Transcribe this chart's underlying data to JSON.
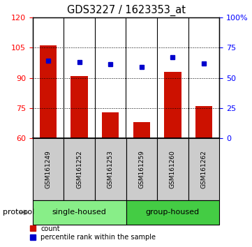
{
  "title": "GDS3227 / 1623353_at",
  "samples": [
    "GSM161249",
    "GSM161252",
    "GSM161253",
    "GSM161259",
    "GSM161260",
    "GSM161262"
  ],
  "bar_values": [
    106,
    91,
    73,
    68,
    93,
    76
  ],
  "percentile_values": [
    64,
    63,
    61,
    59,
    67,
    62
  ],
  "bar_color": "#cc1100",
  "dot_color": "#0000cc",
  "left_ylim": [
    60,
    120
  ],
  "left_yticks": [
    60,
    75,
    90,
    105,
    120
  ],
  "right_ylim": [
    0,
    100
  ],
  "right_yticks": [
    0,
    25,
    50,
    75,
    100
  ],
  "right_yticklabels": [
    "0",
    "25",
    "50",
    "75",
    "100%"
  ],
  "groups": [
    {
      "label": "single-housed",
      "indices": [
        0,
        1,
        2
      ],
      "color": "#88ee88"
    },
    {
      "label": "group-housed",
      "indices": [
        3,
        4,
        5
      ],
      "color": "#44cc44"
    }
  ],
  "protocol_label": "protocol",
  "legend_items": [
    {
      "label": "count",
      "color": "#cc1100"
    },
    {
      "label": "percentile rank within the sample",
      "color": "#0000cc"
    }
  ],
  "bg_color": "#ffffff",
  "sample_box_color": "#cccccc",
  "bar_width": 0.55
}
